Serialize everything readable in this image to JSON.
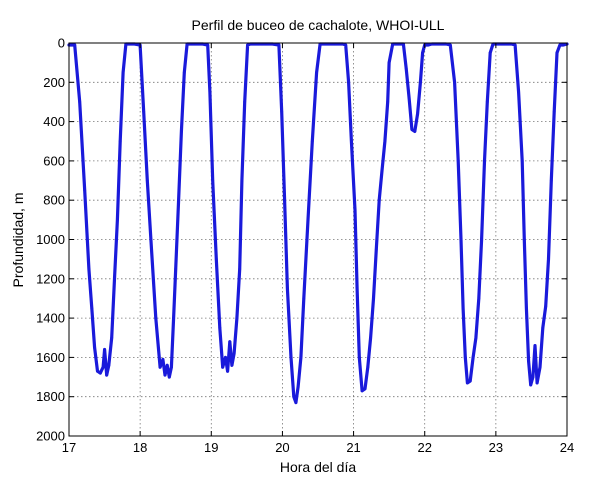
{
  "chart_data": {
    "type": "line",
    "title": "Perfil de buceo de cachalote, WHOI-ULL",
    "xlabel": "Hora del día",
    "ylabel": "Profundidad, m",
    "xlim": [
      17,
      24
    ],
    "ylim": [
      0,
      2000
    ],
    "y_reversed": true,
    "grid": true,
    "x_ticks": [
      "17",
      "18",
      "19",
      "20",
      "21",
      "22",
      "23",
      "24"
    ],
    "y_ticks": [
      "0",
      "200",
      "400",
      "600",
      "800",
      "1000",
      "1200",
      "1400",
      "1600",
      "1800",
      "2000"
    ],
    "series": [
      {
        "color": "#1a1adb",
        "x": [
          17.0,
          17.08,
          17.15,
          17.22,
          17.28,
          17.32,
          17.36,
          17.4,
          17.44,
          17.48,
          17.5,
          17.53,
          17.56,
          17.6,
          17.64,
          17.68,
          17.72,
          17.76,
          17.8,
          17.85,
          17.88,
          17.92,
          18.0,
          18.05,
          18.1,
          18.16,
          18.22,
          18.28,
          18.32,
          18.35,
          18.38,
          18.41,
          18.44,
          18.47,
          18.5,
          18.54,
          18.58,
          18.62,
          18.66,
          18.7,
          18.74,
          18.78,
          18.82,
          18.88,
          18.95,
          18.98,
          19.02,
          19.07,
          19.12,
          19.16,
          19.2,
          19.23,
          19.26,
          19.29,
          19.32,
          19.36,
          19.4,
          19.43,
          19.47,
          19.51,
          19.55,
          19.6,
          19.65,
          19.7,
          19.78,
          19.86,
          19.95,
          19.99,
          20.03,
          20.07,
          20.12,
          20.16,
          20.19,
          20.22,
          20.26,
          20.3,
          20.36,
          20.42,
          20.48,
          20.53,
          20.57,
          20.6,
          20.65,
          20.75,
          20.85,
          20.89,
          20.93,
          20.97,
          21.02,
          21.05,
          21.08,
          21.12,
          21.16,
          21.2,
          21.24,
          21.28,
          21.32,
          21.36,
          21.4,
          21.44,
          21.48,
          21.5,
          21.55,
          21.6,
          21.65,
          21.7,
          21.74,
          21.78,
          21.82,
          21.86,
          21.9,
          21.94,
          21.97,
          22.0,
          22.05,
          22.1,
          22.2,
          22.25,
          22.3,
          22.36,
          22.42,
          22.47,
          22.51,
          22.54,
          22.57,
          22.6,
          22.64,
          22.68,
          22.72,
          22.76,
          22.8,
          22.84,
          22.88,
          22.92,
          22.96,
          23.02,
          23.1,
          23.16,
          23.22,
          23.27,
          23.32,
          23.37,
          23.4,
          23.43,
          23.46,
          23.49,
          23.52,
          23.55,
          23.58,
          23.62,
          23.66,
          23.7,
          23.74,
          23.78,
          23.82,
          23.86,
          23.9,
          23.95,
          24.0
        ],
        "y": [
          10,
          10,
          300,
          750,
          1150,
          1350,
          1550,
          1670,
          1680,
          1650,
          1560,
          1690,
          1640,
          1500,
          1200,
          900,
          500,
          150,
          5,
          5,
          5,
          5,
          10,
          350,
          700,
          1050,
          1400,
          1650,
          1610,
          1690,
          1640,
          1700,
          1650,
          1400,
          1150,
          800,
          450,
          150,
          5,
          5,
          5,
          5,
          5,
          5,
          10,
          250,
          700,
          1100,
          1450,
          1650,
          1600,
          1670,
          1520,
          1640,
          1580,
          1400,
          1150,
          700,
          300,
          10,
          5,
          5,
          5,
          5,
          5,
          5,
          10,
          350,
          800,
          1250,
          1600,
          1800,
          1830,
          1750,
          1600,
          1300,
          900,
          500,
          150,
          5,
          5,
          5,
          5,
          5,
          5,
          10,
          200,
          500,
          850,
          1250,
          1600,
          1770,
          1760,
          1650,
          1500,
          1300,
          1050,
          800,
          650,
          500,
          300,
          100,
          5,
          5,
          5,
          5,
          130,
          280,
          440,
          450,
          360,
          200,
          50,
          10,
          10,
          5,
          5,
          5,
          5,
          10,
          200,
          600,
          1000,
          1350,
          1600,
          1730,
          1720,
          1600,
          1500,
          1300,
          1000,
          600,
          300,
          50,
          5,
          5,
          5,
          5,
          5,
          10,
          250,
          600,
          1000,
          1350,
          1620,
          1740,
          1700,
          1540,
          1730,
          1650,
          1450,
          1340,
          1100,
          700,
          350,
          50,
          10,
          10,
          5
        ]
      }
    ]
  }
}
